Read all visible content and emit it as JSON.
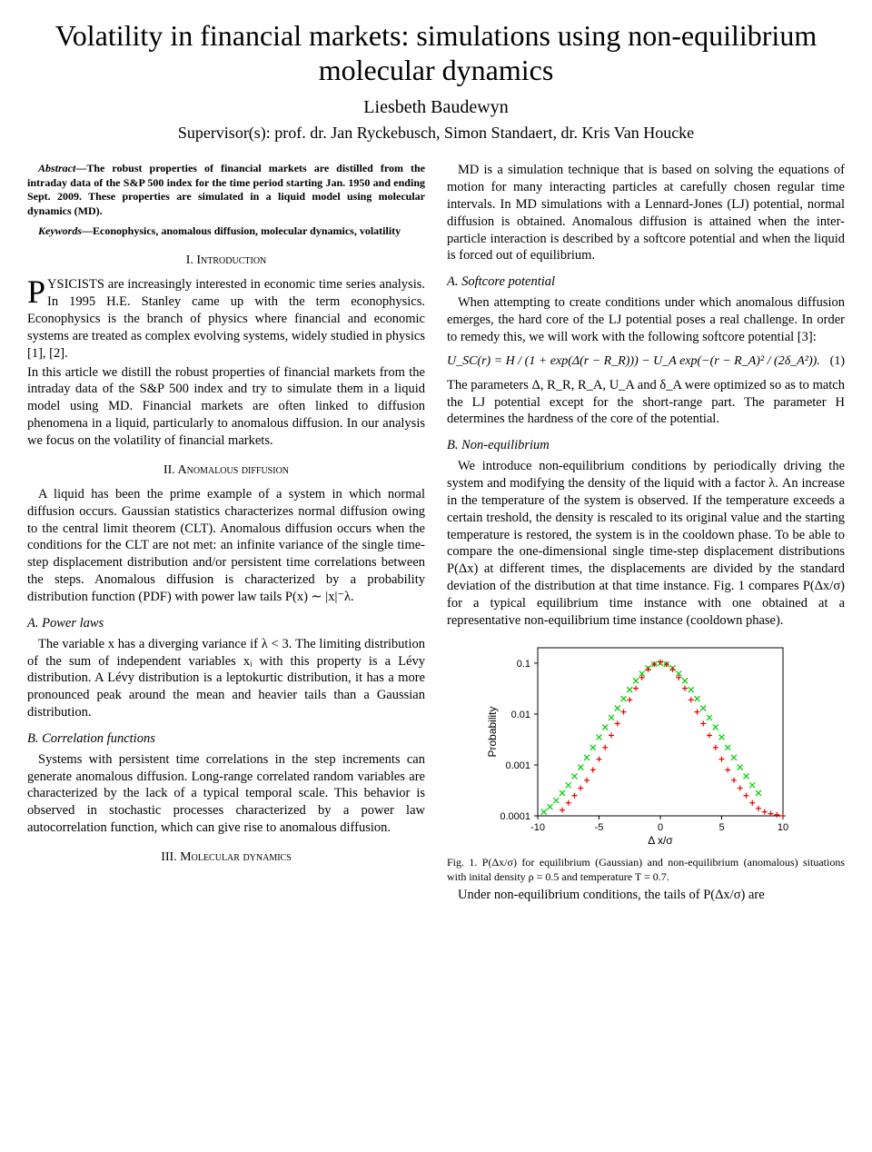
{
  "title": "Volatility in financial markets: simulations using non-equilibrium molecular dynamics",
  "author": "Liesbeth Baudewyn",
  "supervisors": "Supervisor(s): prof. dr. Jan Ryckebusch, Simon Standaert, dr. Kris Van Houcke",
  "abstract_label": "Abstract",
  "abstract_text": "—The robust properties of financial markets are distilled from the intraday data of the S&P 500 index for the time period starting Jan. 1950 and ending Sept. 2009. These properties are simulated in a liquid model using molecular dynamics (MD).",
  "keywords_label": "Keywords",
  "keywords_text": "—Econophysics, anomalous diffusion, molecular dynamics, volatility",
  "sec1_header": "I. Introduction",
  "sec1_p1a": "YSICISTS are increasingly interested in economic time series analysis. In 1995 H.E. Stanley came up with the term econophysics. Econophysics is the branch of physics where financial and economic systems are treated as complex evolving systems, widely studied in physics [1], [2].",
  "sec1_p2": "In this article we distill the robust properties of financial markets from the intraday data of the S&P 500 index and try to simulate them in a liquid model using MD. Financial markets are often linked to diffusion phenomena in a liquid, particularly to anomalous diffusion. In our analysis we focus on the volatility of financial markets.",
  "sec2_header": "II. Anomalous diffusion",
  "sec2_p1": "A liquid has been the prime example of a system in which normal diffusion occurs. Gaussian statistics characterizes normal diffusion owing to the central limit theorem (CLT). Anomalous diffusion occurs when the conditions for the CLT are not met: an infinite variance of the single time-step displacement distribution and/or persistent time correlations between the steps. Anomalous diffusion is characterized by a probability distribution function (PDF) with power law tails P(x) ∼ |x|⁻λ.",
  "sec2a_header": "A. Power laws",
  "sec2a_p1": "The variable x has a diverging variance if λ < 3. The limiting distribution of the sum of independent variables xᵢ with this property is a Lévy distribution. A Lévy distribution is a leptokurtic distribution, it has a more pronounced peak around the mean and heavier tails than a Gaussian distribution.",
  "sec2b_header": "B. Correlation functions",
  "sec2b_p1": "Systems with persistent time correlations in the step increments can generate anomalous diffusion. Long-range correlated random variables are characterized by the lack of a typical temporal scale. This behavior is observed in stochastic processes characterized by a power law autocorrelation function, which can give rise to anomalous diffusion.",
  "sec3_header": "III. Molecular dynamics",
  "sec3_p1": "MD is a simulation technique that is based on solving the equations of motion for many interacting particles at carefully chosen regular time intervals. In MD simulations with a Lennard-Jones (LJ) potential, normal diffusion is obtained. Anomalous diffusion is attained when the inter-particle interaction is described by a softcore potential and when the liquid is forced out of equilibrium.",
  "sec3a_header": "A. Softcore potential",
  "sec3a_p1": "When attempting to create conditions under which anomalous diffusion emerges, the hard core of the LJ potential poses a real challenge. In order to remedy this, we will work with the following softcore potential [3]:",
  "eq1": "U_SC(r) = H / (1 + exp(Δ(r − R_R))) − U_A exp(−(r − R_A)² / (2δ_A²)).",
  "eq1_num": "(1)",
  "sec3a_p2": "The parameters Δ, R_R, R_A, U_A and δ_A were optimized so as to match the LJ potential except for the short-range part. The parameter H determines the hardness of the core of the potential.",
  "sec3b_header": "B. Non-equilibrium",
  "sec3b_p1": "We introduce non-equilibrium conditions by periodically driving the system and modifying the density of the liquid with a factor λ. An increase in the temperature of the system is observed. If the temperature exceeds a certain treshold, the density is rescaled to its original value and the starting temperature is restored, the system is in the cooldown phase. To be able to compare the one-dimensional single time-step displacement distributions P(Δx) at different times, the displacements are divided by the standard deviation of the distribution at that time instance. Fig. 1 compares P(Δx/σ) for a typical equilibrium time instance with one obtained at a representative non-equilibrium time instance (cooldown phase).",
  "fig1_caption": "Fig. 1.   P(Δx/σ) for equilibrium (Gaussian) and non-equilibrium (anomalous) situations with inital density ρ = 0.5 and temperature T = 0.7.",
  "sec3b_p2": "Under non-equilibrium conditions, the tails of P(Δx/σ) are",
  "chart": {
    "type": "scatter",
    "xlabel": "Δ x/σ",
    "ylabel": "Probability",
    "xlim": [
      -10,
      10
    ],
    "xticks": [
      -10,
      -5,
      0,
      5,
      10
    ],
    "yscale": "log",
    "ylim": [
      0.0001,
      0.2
    ],
    "yticks": [
      0.0001,
      0.001,
      0.01,
      0.1
    ],
    "ytick_labels": [
      "0.0001",
      "0.001",
      "0.01",
      "0.1"
    ],
    "background_color": "#ffffff",
    "border_color": "#000000",
    "series": [
      {
        "name": "equilibrium",
        "color": "#00cc00",
        "marker": "x",
        "marker_size": 3,
        "x": [
          -9.5,
          -9,
          -8.5,
          -8,
          -7.5,
          -7,
          -6.5,
          -6,
          -5.5,
          -5,
          -4.5,
          -4,
          -3.5,
          -3,
          -2.5,
          -2,
          -1.5,
          -1,
          -0.5,
          0,
          0.5,
          1,
          1.5,
          2,
          2.5,
          3,
          3.5,
          4,
          4.5,
          5,
          5.5,
          6,
          6.5,
          7,
          7.5,
          8
        ],
        "y": [
          0.00012,
          0.00015,
          0.0002,
          0.00028,
          0.0004,
          0.0006,
          0.0009,
          0.0014,
          0.0022,
          0.0035,
          0.0055,
          0.0085,
          0.013,
          0.02,
          0.03,
          0.045,
          0.062,
          0.08,
          0.095,
          0.1,
          0.095,
          0.08,
          0.062,
          0.045,
          0.03,
          0.02,
          0.013,
          0.0085,
          0.0055,
          0.0035,
          0.0022,
          0.0014,
          0.0009,
          0.0006,
          0.0004,
          0.00028
        ]
      },
      {
        "name": "non-equilibrium",
        "color": "#ee0000",
        "marker": "+",
        "marker_size": 3,
        "x": [
          -8,
          -7.5,
          -7,
          -6.5,
          -6,
          -5.5,
          -5,
          -4.5,
          -4,
          -3.5,
          -3,
          -2.5,
          -2,
          -1.5,
          -1,
          -0.5,
          0,
          0.5,
          1,
          1.5,
          2,
          2.5,
          3,
          3.5,
          4,
          4.5,
          5,
          5.5,
          6,
          6.5,
          7,
          7.5,
          8,
          8.5,
          9,
          9.5,
          10
        ],
        "y": [
          0.00013,
          0.00018,
          0.00025,
          0.00035,
          0.0005,
          0.0008,
          0.0013,
          0.0022,
          0.0038,
          0.0065,
          0.011,
          0.019,
          0.032,
          0.052,
          0.075,
          0.095,
          0.105,
          0.095,
          0.075,
          0.052,
          0.032,
          0.019,
          0.011,
          0.0065,
          0.0038,
          0.0022,
          0.0013,
          0.0008,
          0.0005,
          0.00035,
          0.00025,
          0.00018,
          0.00014,
          0.00012,
          0.00011,
          0.000105,
          0.0001
        ]
      }
    ]
  }
}
